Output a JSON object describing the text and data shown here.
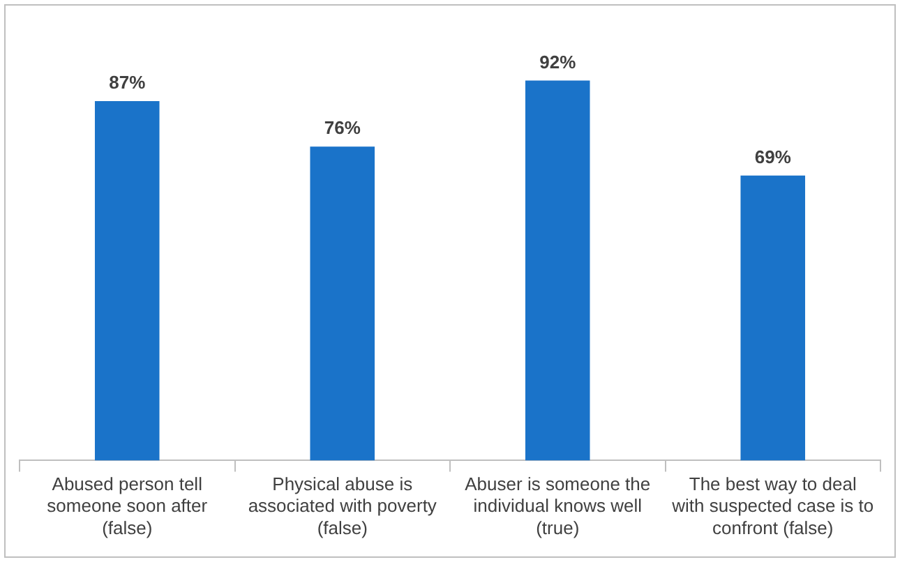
{
  "chart_data": {
    "type": "bar",
    "categories": [
      "Abused person tell someone soon after (false)",
      "Physical abuse is associated with poverty (false)",
      "Abuser is someone the individual knows well (true)",
      "The best way to deal with suspected case is to confront (false)"
    ],
    "values": [
      87,
      76,
      92,
      69
    ],
    "value_labels": [
      "87%",
      "76%",
      "92%",
      "69%"
    ],
    "color": "#1a73c9",
    "legend": false,
    "grid": false
  }
}
